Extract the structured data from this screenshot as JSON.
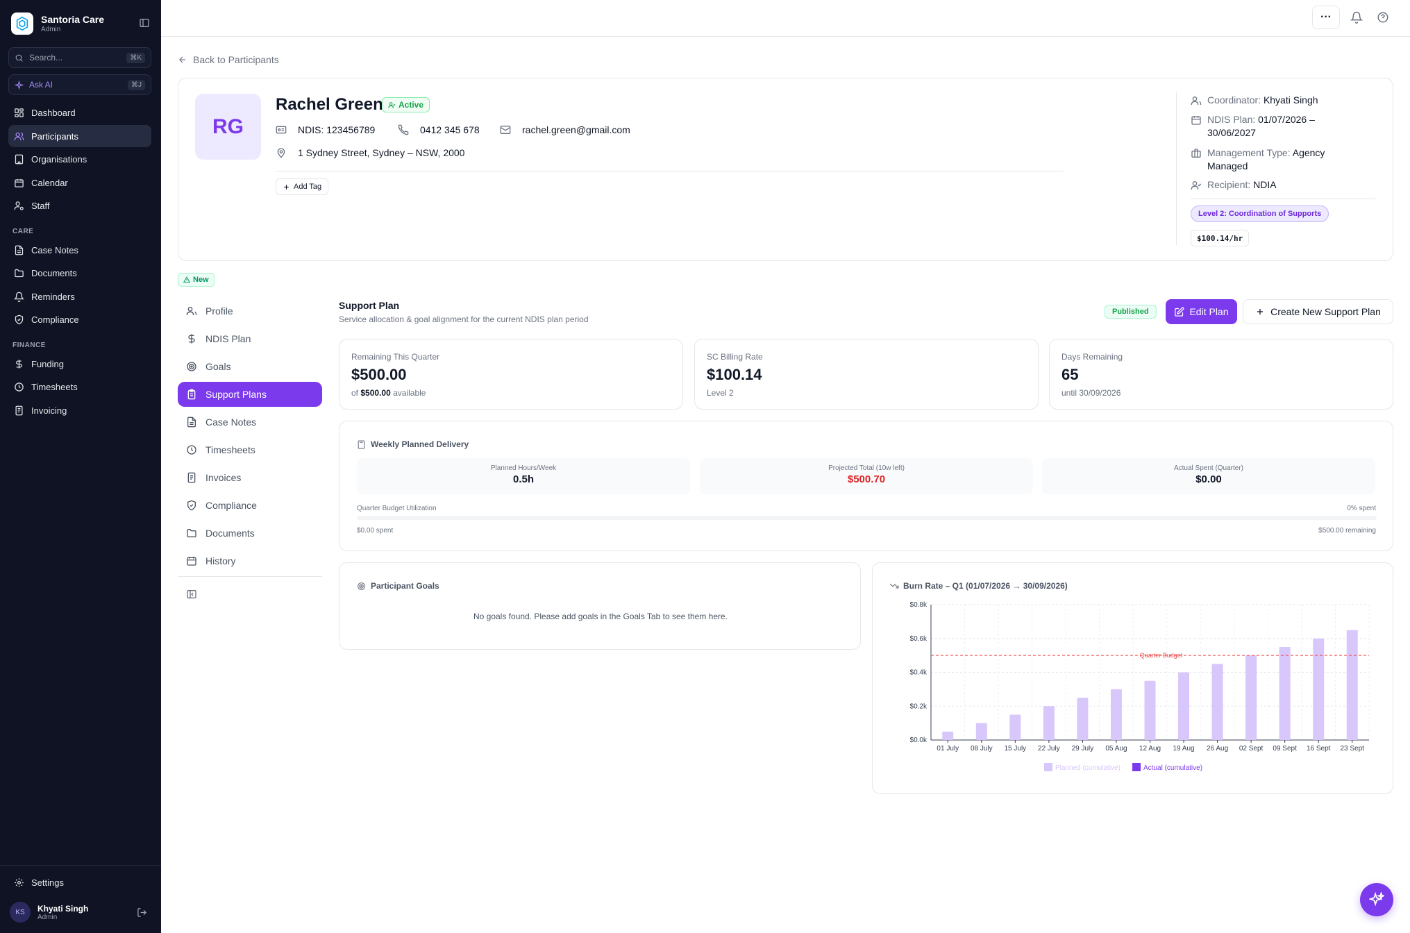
{
  "app": {
    "name": "Santoria Care",
    "role": "Admin"
  },
  "sidebar": {
    "search_placeholder": "Search...",
    "search_shortcut": "⌘K",
    "ask_ai": "Ask AI",
    "ask_ai_shortcut": "⌘J",
    "main_items": [
      {
        "label": "Dashboard",
        "icon": "grid-icon"
      },
      {
        "label": "Participants",
        "icon": "users-icon",
        "active": true
      },
      {
        "label": "Organisations",
        "icon": "building-icon"
      },
      {
        "label": "Calendar",
        "icon": "calendar-icon"
      },
      {
        "label": "Staff",
        "icon": "user-cog-icon"
      }
    ],
    "care_heading": "CARE",
    "care_items": [
      {
        "label": "Case Notes",
        "icon": "file-icon"
      },
      {
        "label": "Documents",
        "icon": "folder-icon"
      },
      {
        "label": "Reminders",
        "icon": "bell-icon"
      },
      {
        "label": "Compliance",
        "icon": "shield-icon"
      }
    ],
    "finance_heading": "FINANCE",
    "finance_items": [
      {
        "label": "Funding",
        "icon": "dollar-icon"
      },
      {
        "label": "Timesheets",
        "icon": "clock-icon"
      },
      {
        "label": "Invoicing",
        "icon": "receipt-icon"
      }
    ],
    "settings": "Settings",
    "user": {
      "initials": "KS",
      "name": "Khyati Singh",
      "role": "Admin"
    }
  },
  "back_link": "Back to Participants",
  "participant": {
    "initials": "RG",
    "name": "Rachel Green",
    "status": "Active",
    "ndis": "NDIS: 123456789",
    "phone": "0412 345 678",
    "email": "rachel.green@gmail.com",
    "address": "1 Sydney Street, Sydney – NSW, 2000",
    "add_tag": "Add Tag",
    "coordinator_label": "Coordinator:",
    "coordinator": "Khyati Singh",
    "plan_label": "NDIS Plan:",
    "plan_line1": "01/07/2026 –",
    "plan_line2": "30/06/2027",
    "mgmt_label": "Management Type:",
    "mgmt_line1": "Agency",
    "mgmt_line2": "Managed",
    "recipient_label": "Recipient:",
    "recipient": "NDIA",
    "level_badge": "Level 2: Coordination of Supports",
    "rate_badge": "$100.14/hr"
  },
  "new_badge": "New",
  "tabs": [
    {
      "label": "Profile",
      "icon": "user-icon"
    },
    {
      "label": "NDIS Plan",
      "icon": "dollar-icon"
    },
    {
      "label": "Goals",
      "icon": "target-icon"
    },
    {
      "label": "Support Plans",
      "icon": "clipboard-icon",
      "active": true
    },
    {
      "label": "Case Notes",
      "icon": "file-icon"
    },
    {
      "label": "Timesheets",
      "icon": "clock-icon"
    },
    {
      "label": "Invoices",
      "icon": "receipt-icon"
    },
    {
      "label": "Compliance",
      "icon": "shield-icon"
    },
    {
      "label": "Documents",
      "icon": "folder-icon"
    },
    {
      "label": "History",
      "icon": "calendar-icon"
    }
  ],
  "support_plan": {
    "title": "Support Plan",
    "subtitle": "Service allocation & goal alignment for the current NDIS plan period",
    "status": "Published",
    "edit_label": "Edit Plan",
    "create_label": "Create New Support Plan"
  },
  "stats": [
    {
      "label": "Remaining This Quarter",
      "value": "$500.00",
      "sub_prefix": "of",
      "sub_bold": "$500.00",
      "sub_suffix": "available"
    },
    {
      "label": "SC Billing Rate",
      "value": "$100.14",
      "sub": "Level 2"
    },
    {
      "label": "Days Remaining",
      "value": "65",
      "sub": "until 30/09/2026"
    }
  ],
  "weekly": {
    "title": "Weekly Planned Delivery",
    "metrics": [
      {
        "label": "Planned Hours/Week",
        "value": "0.5h"
      },
      {
        "label": "Projected Total (10w left)",
        "value": "$500.70"
      },
      {
        "label": "Actual Spent (Quarter)",
        "value": "$0.00"
      }
    ],
    "utilization_label": "Quarter Budget Utilization",
    "utilization_pct_label": "0% spent",
    "utilization_fraction": 0,
    "spent_label": "$0.00 spent",
    "remaining_label": "$500.00 remaining"
  },
  "goals": {
    "title": "Participant Goals",
    "empty": "No goals found. Please add goals in the Goals Tab to see them here."
  },
  "burn_title": "Burn Rate – Q1 (01/07/2026 → 30/09/2026)",
  "chart_data": {
    "type": "bar",
    "title": "Burn Rate – Q1 (01/07/2026 → 30/09/2026)",
    "categories": [
      "01 July",
      "08 July",
      "15 July",
      "22 July",
      "29 July",
      "05 Aug",
      "12 Aug",
      "19 Aug",
      "26 Aug",
      "02 Sept",
      "09 Sept",
      "16 Sept",
      "23 Sept"
    ],
    "series": [
      {
        "name": "Planned (cumulative)",
        "values": [
          50,
          100,
          150,
          200,
          250,
          300,
          350,
          400,
          450,
          500,
          550,
          600,
          650
        ],
        "color": "#d8c7fb"
      },
      {
        "name": "Actual (cumulative)",
        "values": [
          0,
          0,
          0,
          0,
          0,
          0,
          0,
          0,
          0,
          0,
          0,
          0,
          0
        ],
        "color": "#7c3aed"
      }
    ],
    "y_ticks": [
      "$0.0k",
      "$0.2k",
      "$0.4k",
      "$0.6k",
      "$0.8k"
    ],
    "ylim": [
      0,
      800
    ],
    "reference_line": {
      "label": "Quarter Budget",
      "value": 500,
      "color": "#ef4444"
    },
    "grid": true,
    "legend": "bottom"
  }
}
